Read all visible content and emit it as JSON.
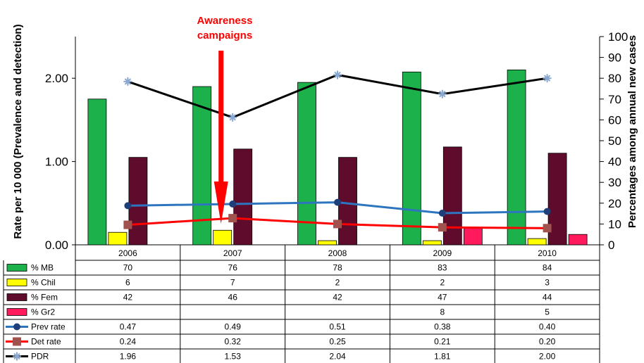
{
  "chart_data": {
    "type": "bar",
    "categories": [
      "2006",
      "2007",
      "2008",
      "2009",
      "2010"
    ],
    "bar_series": [
      {
        "name": "% MB",
        "values": [
          70,
          76,
          78,
          83,
          84
        ],
        "color": "#1db14b"
      },
      {
        "name": "% Chil",
        "values": [
          6,
          7,
          2,
          2,
          3
        ],
        "color": "#ffff00"
      },
      {
        "name": "% Fem",
        "values": [
          42,
          46,
          42,
          47,
          44
        ],
        "color": "#5e0b2c"
      },
      {
        "name": "% Gr2",
        "values": [
          null,
          null,
          null,
          8,
          5
        ],
        "color": "#ff1a5e"
      }
    ],
    "line_series": [
      {
        "name": "Prev rate",
        "values": [
          0.47,
          0.49,
          0.51,
          0.38,
          0.4
        ],
        "color": "#2e75c0",
        "marker": "circle"
      },
      {
        "name": "Det rate",
        "values": [
          0.24,
          0.32,
          0.25,
          0.21,
          0.2
        ],
        "color": "#ff0000",
        "marker": "square"
      },
      {
        "name": "PDR",
        "values": [
          1.96,
          1.53,
          2.04,
          1.81,
          2.0
        ],
        "color": "#000000",
        "marker": "star"
      }
    ],
    "table_rows": [
      {
        "label": "% MB",
        "cells": [
          "70",
          "76",
          "78",
          "83",
          "84"
        ]
      },
      {
        "label": "% Chil",
        "cells": [
          "6",
          "7",
          "2",
          "2",
          "3"
        ]
      },
      {
        "label": "% Fem",
        "cells": [
          "42",
          "46",
          "42",
          "47",
          "44"
        ]
      },
      {
        "label": "% Gr2",
        "cells": [
          "",
          "",
          "",
          "8",
          "5"
        ]
      },
      {
        "label": "Prev rate",
        "cells": [
          "0.47",
          "0.49",
          "0.51",
          "0.38",
          "0.40"
        ]
      },
      {
        "label": "Det rate",
        "cells": [
          "0.24",
          "0.32",
          "0.25",
          "0.21",
          "0.20"
        ]
      },
      {
        "label": "PDR",
        "cells": [
          "1.96",
          "1.53",
          "2.04",
          "1.81",
          "2.00"
        ]
      }
    ],
    "left_axis": {
      "label": "Rate per 10 000 (Prevalence and detection)",
      "ticks": [
        "0.00",
        "1.00",
        "2.00"
      ],
      "range": [
        0,
        2.5
      ]
    },
    "right_axis": {
      "label": "Percentages among annual new cases",
      "ticks": [
        "0",
        "10",
        "20",
        "30",
        "40",
        "50",
        "60",
        "70",
        "80",
        "90",
        "100"
      ],
      "range": [
        0,
        100
      ]
    },
    "annotation": {
      "line1": "Awareness",
      "line2": "campaigns",
      "category": "2007",
      "color": "#ff0000"
    }
  }
}
